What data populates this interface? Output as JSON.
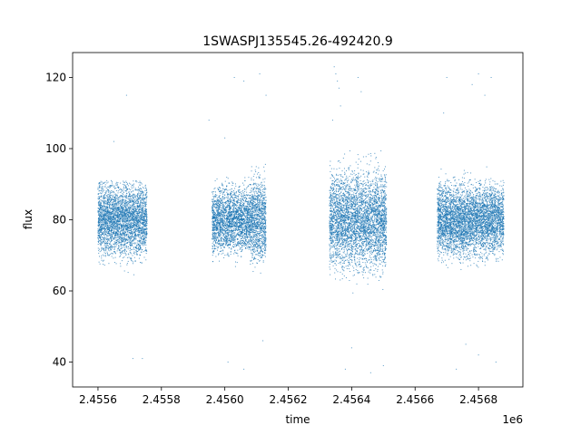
{
  "chart_data": {
    "type": "scatter",
    "title": "1SWASPJ135545.26-492420.9",
    "xlabel": "time",
    "ylabel": "flux",
    "x_offset_label": "1e6",
    "xlim": [
      2455520,
      2456940
    ],
    "ylim": [
      33,
      127
    ],
    "x_ticks": [
      2455600,
      2455800,
      2456000,
      2456200,
      2456400,
      2456600,
      2456800
    ],
    "x_tick_labels": [
      "2.4556",
      "2.4558",
      "2.4560",
      "2.4562",
      "2.4564",
      "2.4566",
      "2.4568"
    ],
    "y_ticks": [
      40,
      60,
      80,
      100,
      120
    ],
    "y_tick_labels": [
      "40",
      "60",
      "80",
      "100",
      "120"
    ],
    "grid": false,
    "marker_color": "#1f77b4",
    "series": [
      {
        "segments": [
          {
            "x_range": [
              2455600,
              2455755
            ],
            "center": 80,
            "spread": 9,
            "lo": 58,
            "hi": 91
          },
          {
            "x_range": [
              2455960,
              2456080
            ],
            "center": 80,
            "spread": 8,
            "lo": 62,
            "hi": 92
          },
          {
            "x_range": [
              2456080,
              2456130
            ],
            "center": 80,
            "spread": 10,
            "lo": 47,
            "hi": 102
          },
          {
            "x_range": [
              2456330,
              2456510
            ],
            "center": 80,
            "spread": 12,
            "lo": 50,
            "hi": 106
          },
          {
            "x_range": [
              2456670,
              2456880
            ],
            "center": 80,
            "spread": 9,
            "lo": 53,
            "hi": 100
          }
        ],
        "outliers": [
          {
            "x": 2455690,
            "y": 115
          },
          {
            "x": 2455650,
            "y": 102
          },
          {
            "x": 2455710,
            "y": 41
          },
          {
            "x": 2455740,
            "y": 41
          },
          {
            "x": 2456030,
            "y": 120
          },
          {
            "x": 2456060,
            "y": 119
          },
          {
            "x": 2456110,
            "y": 121
          },
          {
            "x": 2456130,
            "y": 115
          },
          {
            "x": 2455950,
            "y": 108
          },
          {
            "x": 2456000,
            "y": 103
          },
          {
            "x": 2456120,
            "y": 46
          },
          {
            "x": 2456010,
            "y": 40
          },
          {
            "x": 2456060,
            "y": 38
          },
          {
            "x": 2456345,
            "y": 123
          },
          {
            "x": 2456350,
            "y": 121
          },
          {
            "x": 2456355,
            "y": 119
          },
          {
            "x": 2456360,
            "y": 117
          },
          {
            "x": 2456365,
            "y": 112
          },
          {
            "x": 2456340,
            "y": 108
          },
          {
            "x": 2456420,
            "y": 120
          },
          {
            "x": 2456430,
            "y": 116
          },
          {
            "x": 2456380,
            "y": 38
          },
          {
            "x": 2456460,
            "y": 37
          },
          {
            "x": 2456500,
            "y": 39
          },
          {
            "x": 2456400,
            "y": 44
          },
          {
            "x": 2456800,
            "y": 121
          },
          {
            "x": 2456820,
            "y": 115
          },
          {
            "x": 2456840,
            "y": 120
          },
          {
            "x": 2456700,
            "y": 120
          },
          {
            "x": 2456780,
            "y": 118
          },
          {
            "x": 2456690,
            "y": 110
          },
          {
            "x": 2456730,
            "y": 38
          },
          {
            "x": 2456800,
            "y": 42
          },
          {
            "x": 2456855,
            "y": 40
          },
          {
            "x": 2456760,
            "y": 45
          }
        ]
      }
    ]
  }
}
